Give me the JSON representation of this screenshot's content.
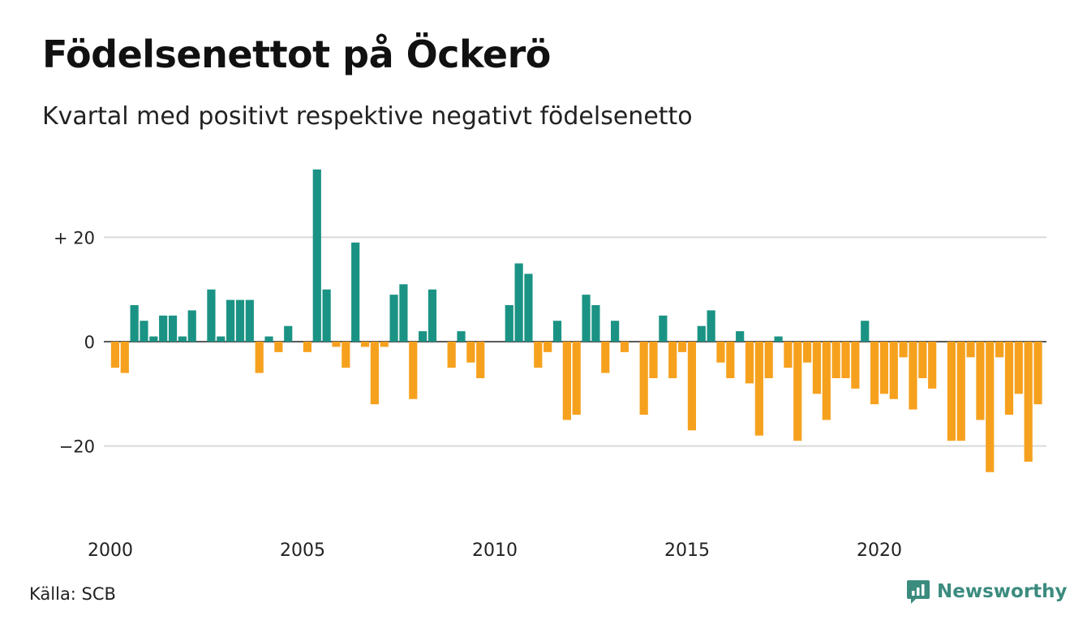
{
  "title": "Födelsenettot på Öckerö",
  "subtitle": "Kvartal med positivt respektive negativt födelsenetto",
  "source": "Källa: SCB",
  "brand": "Newsworthy",
  "colors": {
    "positive": "#1b9384",
    "negative": "#f6a11e",
    "grid": "#d9d9d9",
    "axis": "#222222",
    "brand": "#3c8b7f"
  },
  "chart_data": {
    "type": "bar",
    "x_start": 2000,
    "x_end": 2024.5,
    "ylim": [
      -35,
      35
    ],
    "yticks": [
      {
        "value": 20,
        "label": "+ 20"
      },
      {
        "value": 0,
        "label": "0"
      },
      {
        "value": -20,
        "label": "−20"
      }
    ],
    "xticks": [
      {
        "value": 2000,
        "label": "2000"
      },
      {
        "value": 2005,
        "label": "2005"
      },
      {
        "value": 2010,
        "label": "2010"
      },
      {
        "value": 2015,
        "label": "2015"
      },
      {
        "value": 2020,
        "label": "2020"
      }
    ],
    "grid": true,
    "quarters_per_year": 4,
    "start_year": 2000,
    "values": [
      -5,
      -6,
      7,
      4,
      1,
      5,
      5,
      1,
      6,
      0,
      10,
      1,
      8,
      8,
      8,
      -6,
      1,
      -2,
      3,
      0,
      -2,
      33,
      10,
      -1,
      -5,
      19,
      -1,
      -12,
      -1,
      9,
      11,
      -11,
      2,
      10,
      0,
      -5,
      2,
      -4,
      -7,
      0,
      0,
      7,
      15,
      13,
      -5,
      -2,
      4,
      -15,
      -14,
      9,
      7,
      -6,
      4,
      -2,
      0,
      -14,
      -7,
      5,
      -7,
      -2,
      -17,
      3,
      6,
      -4,
      -7,
      2,
      -8,
      -18,
      -7,
      1,
      -5,
      -19,
      -4,
      -10,
      -15,
      -7,
      -7,
      -9,
      4,
      -12,
      -10,
      -11,
      -3,
      -13,
      -7,
      -9,
      0,
      -19,
      -19,
      -3,
      -15,
      -25,
      -3,
      -14,
      -10,
      -23,
      -12
    ]
  }
}
